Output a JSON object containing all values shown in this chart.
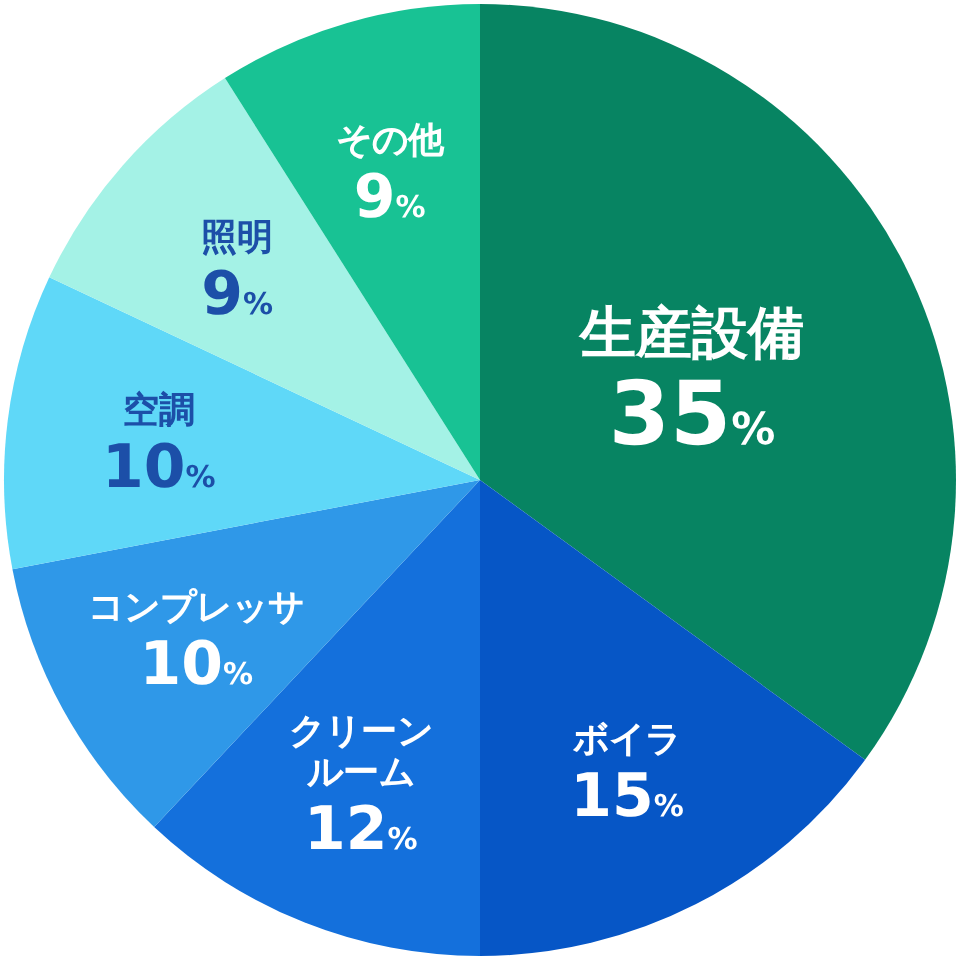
{
  "chart_data": {
    "type": "pie",
    "categories": [
      "生産設備",
      "ボイラ",
      "クリーンルーム",
      "コンプレッサ",
      "空調",
      "照明",
      "その他"
    ],
    "values": [
      35,
      15,
      12,
      10,
      10,
      9,
      9
    ],
    "colors": [
      "#078462",
      "#0656c6",
      "#1470dc",
      "#2f98e8",
      "#5fd8f8",
      "#a4f2e6",
      "#18c294"
    ],
    "value_labels": [
      "35%",
      "15%",
      "12%",
      "10%",
      "10%",
      "9%",
      "9%"
    ]
  }
}
